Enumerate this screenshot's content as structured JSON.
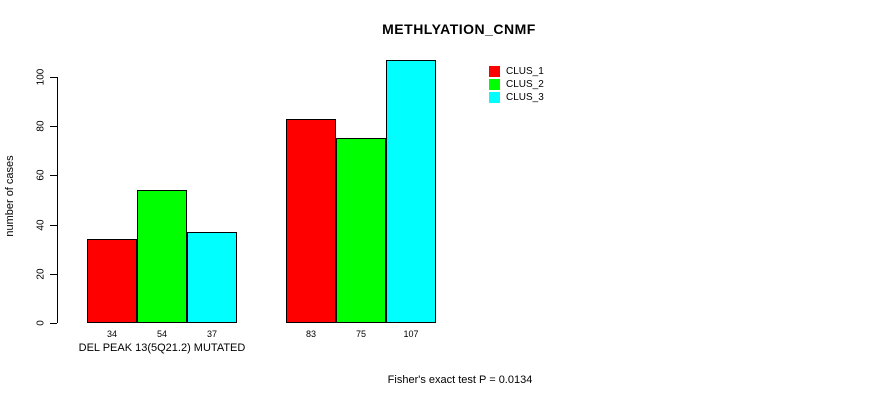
{
  "chart_data": {
    "type": "bar",
    "title": "METHLYATION_CNMF",
    "ylabel": "number of cases",
    "xlabel": "",
    "ylim": [
      0,
      107
    ],
    "yticks": [
      0,
      20,
      40,
      60,
      80,
      100
    ],
    "grid": false,
    "legend_position": "top-right",
    "categories": [
      "DEL PEAK 13(5Q21.2) MUTATED",
      ""
    ],
    "series": [
      {
        "name": "CLUS_1",
        "color": "#ff0000",
        "values": [
          34,
          83
        ]
      },
      {
        "name": "CLUS_2",
        "color": "#00ff00",
        "values": [
          54,
          75
        ]
      },
      {
        "name": "CLUS_3",
        "color": "#00ffff",
        "values": [
          37,
          107
        ]
      }
    ],
    "bar_value_labels": [
      [
        34,
        54,
        37
      ],
      [
        83,
        75,
        107
      ]
    ],
    "annotation": "Fisher's exact test P = 0.0134",
    "bar_border_color": "#000000",
    "axis_color": "#000000",
    "background": "#ffffff"
  }
}
